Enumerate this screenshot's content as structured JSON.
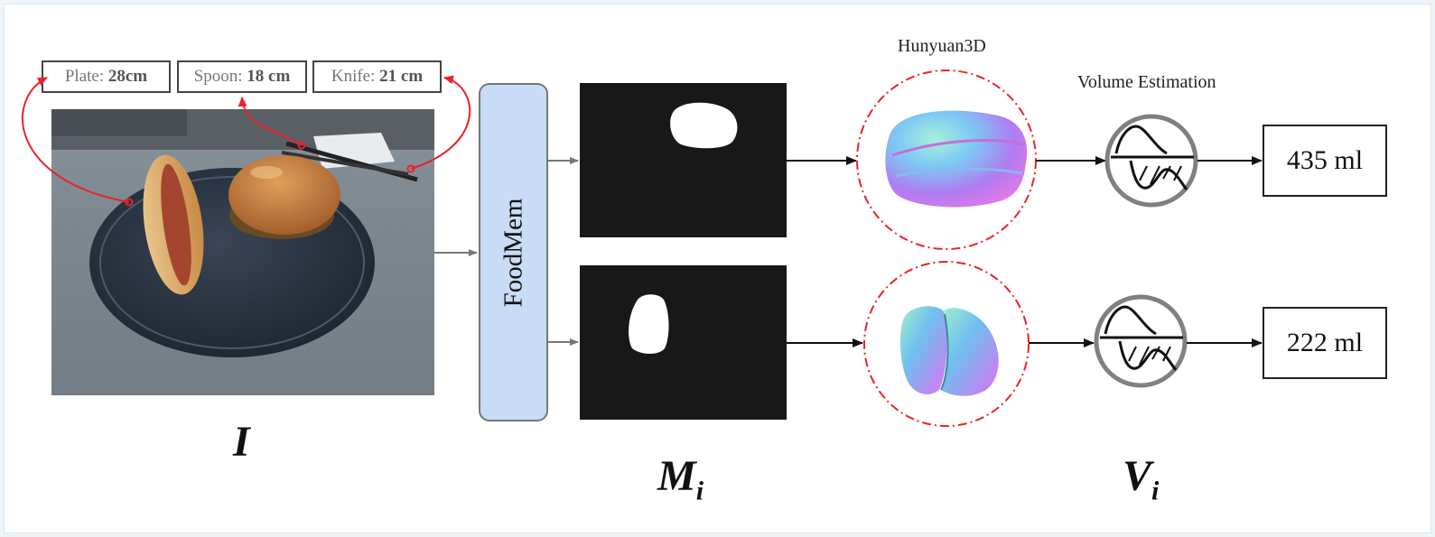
{
  "references": [
    {
      "name": "Plate:",
      "value": "28cm"
    },
    {
      "name": "Spoon:",
      "value": "18 cm"
    },
    {
      "name": "Knife:",
      "value": "21 cm"
    }
  ],
  "foodmem_label": "FoodMem",
  "hunyuan_label": "Hunyuan3D",
  "volume_label": "Volume Estimation",
  "outputs": [
    "435 ml",
    "222 ml"
  ],
  "symbols": {
    "image": "I",
    "masks_base": "M",
    "masks_sub": "i",
    "volumes_base": "V",
    "volumes_sub": "i"
  },
  "colors": {
    "arrow_red": "#e8232a",
    "foodmem_fill": "#c9dcf5",
    "mask_bg": "#181818"
  }
}
